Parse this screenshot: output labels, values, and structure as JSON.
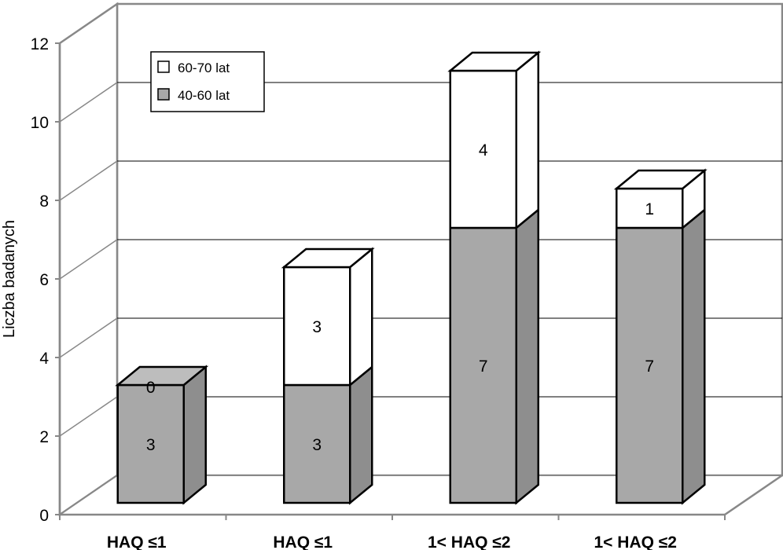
{
  "chart_data": {
    "type": "bar",
    "stacked": true,
    "view": "3d",
    "ylabel": "Liczba badanych",
    "ylim": [
      0,
      12
    ],
    "yticks": [
      0,
      2,
      4,
      6,
      8,
      10,
      12
    ],
    "grid": true,
    "legend_position": "top-left",
    "categories": [
      "HAQ ≤1",
      "HAQ ≤1",
      "1< HAQ ≤2",
      "1< HAQ ≤2"
    ],
    "series": [
      {
        "name": "40-60 lat",
        "values": [
          3,
          3,
          7,
          7
        ],
        "labels": [
          "3",
          "3",
          "7",
          "7"
        ],
        "color": "#a8a8a8",
        "side_color": "#8e8e8e",
        "top_color": "#bdbdbd"
      },
      {
        "name": "60-70 lat",
        "values": [
          0,
          3,
          4,
          1
        ],
        "labels": [
          "0",
          "3",
          "4",
          "1"
        ],
        "color": "#ffffff",
        "side_color": "#ffffff",
        "top_color": "#ffffff"
      }
    ],
    "legend": [
      {
        "label": "60-70 lat",
        "color": "#ffffff"
      },
      {
        "label": "40-60 lat",
        "color": "#a8a8a8"
      }
    ]
  }
}
